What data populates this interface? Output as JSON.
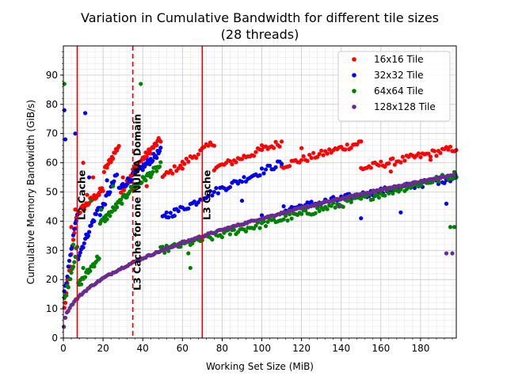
{
  "chart_data": {
    "type": "scatter",
    "title": "Variation in Cumulative Bandwidth for different tile sizes",
    "subtitle": "(28 threads)",
    "xlabel": "Working Set Size (MiB)",
    "ylabel": "Cumulative Memory Bandwidth (GiB/s)",
    "xlim": [
      0,
      198
    ],
    "ylim": [
      0,
      100
    ],
    "x_ticks": [
      0,
      20,
      40,
      60,
      80,
      100,
      120,
      140,
      160,
      180
    ],
    "y_ticks": [
      0,
      10,
      20,
      30,
      40,
      50,
      60,
      70,
      80,
      90
    ],
    "grid": "major and minor",
    "legend_position": "upper right",
    "vlines": [
      {
        "label": "L2 Cache",
        "x": 7,
        "style": "solid",
        "color": "#e00000"
      },
      {
        "label": "L3 Cache for one NUMA Domain",
        "x": 35,
        "style": "dashed",
        "color": "#e00000"
      },
      {
        "label": "L3 Cache",
        "x": 70,
        "style": "solid",
        "color": "#e00000"
      }
    ],
    "series": [
      {
        "name": "16x16 Tile",
        "color": "#ff0000",
        "segments": [
          {
            "x_start": 0.5,
            "x_end": 7,
            "step": 0.5,
            "y_start": 10,
            "y_end": 43
          },
          {
            "x_start": 7.5,
            "x_end": 20,
            "step": 0.5,
            "y_start": 43,
            "y_end": 51
          },
          {
            "x_start": 20.5,
            "x_end": 28,
            "step": 0.5,
            "y_start": 57,
            "y_end": 66
          },
          {
            "x_start": 29,
            "x_end": 35,
            "step": 0.5,
            "y_start": 50,
            "y_end": 57
          },
          {
            "x_start": 35.5,
            "x_end": 49,
            "step": 0.5,
            "y_start": 58,
            "y_end": 68
          },
          {
            "x_start": 50,
            "x_end": 76,
            "step": 1,
            "y_start": 55,
            "y_end": 67
          },
          {
            "x_start": 76,
            "x_end": 110,
            "step": 1,
            "y_start": 58,
            "y_end": 67
          },
          {
            "x_start": 110,
            "x_end": 150,
            "step": 1,
            "y_start": 59,
            "y_end": 67
          },
          {
            "x_start": 150,
            "x_end": 198,
            "step": 1,
            "y_start": 58,
            "y_end": 65
          }
        ],
        "outliers": [
          [
            2,
            20
          ],
          [
            4,
            38
          ],
          [
            6,
            44
          ],
          [
            10,
            60
          ],
          [
            12,
            49
          ],
          [
            15,
            55
          ],
          [
            18,
            49
          ],
          [
            30,
            55
          ],
          [
            42,
            52
          ],
          [
            60,
            58
          ],
          [
            100,
            66
          ],
          [
            120,
            65
          ],
          [
            165,
            57
          ],
          [
            185,
            61
          ]
        ]
      },
      {
        "name": "32x32 Tile",
        "color": "#0000ee",
        "segments": [
          {
            "x_start": 0.5,
            "x_end": 7,
            "step": 0.5,
            "y_start": 15,
            "y_end": 43
          },
          {
            "x_start": 7.5,
            "x_end": 18,
            "step": 0.5,
            "y_start": 28,
            "y_end": 45
          },
          {
            "x_start": 18.5,
            "x_end": 27,
            "step": 0.5,
            "y_start": 43,
            "y_end": 56
          },
          {
            "x_start": 28,
            "x_end": 49,
            "step": 0.5,
            "y_start": 51,
            "y_end": 64
          },
          {
            "x_start": 50,
            "x_end": 68,
            "step": 1,
            "y_start": 41,
            "y_end": 47
          },
          {
            "x_start": 69,
            "x_end": 110,
            "step": 1,
            "y_start": 48,
            "y_end": 60
          },
          {
            "x_start": 111,
            "x_end": 198,
            "step": 1,
            "y_start": 44,
            "y_end": 55
          }
        ],
        "outliers": [
          [
            0.5,
            78
          ],
          [
            1,
            68
          ],
          [
            6,
            70
          ],
          [
            11,
            77
          ],
          [
            13,
            55
          ],
          [
            22,
            54
          ],
          [
            52,
            43
          ],
          [
            56,
            44
          ],
          [
            90,
            47
          ],
          [
            100,
            42
          ],
          [
            150,
            41
          ],
          [
            170,
            43
          ],
          [
            193,
            46
          ]
        ]
      },
      {
        "name": "64x64 Tile",
        "color": "#008000",
        "segments": [
          {
            "x_start": 0.5,
            "x_end": 7,
            "step": 0.5,
            "y_start": 13,
            "y_end": 31
          },
          {
            "x_start": 7.5,
            "x_end": 18,
            "step": 0.5,
            "y_start": 18,
            "y_end": 28
          },
          {
            "x_start": 18.5,
            "x_end": 32,
            "step": 0.5,
            "y_start": 39,
            "y_end": 49
          },
          {
            "x_start": 32.5,
            "x_end": 49,
            "step": 0.5,
            "y_start": 50,
            "y_end": 59
          },
          {
            "x_start": 49,
            "x_end": 198,
            "step": 1,
            "y_start": 30,
            "y_end": 56
          }
        ],
        "outliers": [
          [
            0.5,
            87
          ],
          [
            5,
            32
          ],
          [
            10,
            24
          ],
          [
            14,
            47
          ],
          [
            19,
            44
          ],
          [
            25,
            52
          ],
          [
            39,
            87
          ],
          [
            63,
            29
          ],
          [
            64,
            24
          ],
          [
            195,
            38
          ],
          [
            197,
            38
          ]
        ]
      },
      {
        "name": "128x128 Tile",
        "color": "#6a2c8c",
        "segments": [
          {
            "x_start": 0.25,
            "x_end": 198,
            "step": 0.75,
            "y_start": 4,
            "y_end": 56,
            "curve": "sqrt"
          }
        ],
        "outliers": [
          [
            139,
            45
          ],
          [
            193,
            29
          ],
          [
            196,
            29
          ]
        ]
      }
    ]
  }
}
